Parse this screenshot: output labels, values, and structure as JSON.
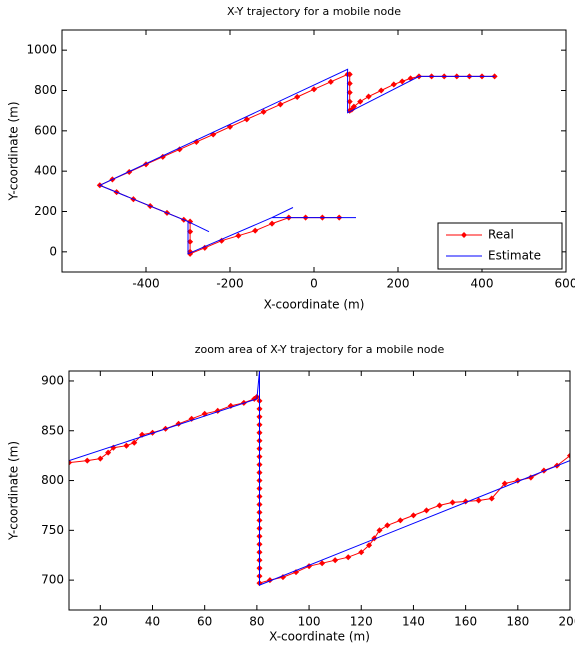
{
  "chart_data": [
    {
      "type": "line",
      "title": "X-Y trajectory for a mobile node",
      "x_label": "X-coordinate (m)",
      "y_label": "Y-coordinate (m)",
      "xlim": [
        -600,
        600
      ],
      "xticks": [
        -400,
        -200,
        0,
        200,
        400,
        600
      ],
      "ylim": [
        -100,
        1100
      ],
      "yticks": [
        0,
        200,
        400,
        600,
        800,
        1000
      ],
      "legend": "lower right",
      "series": [
        {
          "name": "Real",
          "color": "#ff0000",
          "marker": "diamond",
          "x": [
            430,
            400,
            370,
            340,
            310,
            280,
            250,
            230,
            210,
            190,
            160,
            130,
            110,
            95,
            90,
            85,
            85,
            85,
            85,
            85,
            80,
            40,
            0,
            -40,
            -80,
            -120,
            -160,
            -200,
            -240,
            -280,
            -320,
            -360,
            -400,
            -440,
            -480,
            -510,
            -470,
            -430,
            -390,
            -350,
            -310,
            -295,
            -295,
            -295,
            -295,
            -295,
            -260,
            -220,
            -180,
            -140,
            -100,
            -60,
            -20,
            20,
            60
          ],
          "values": [
            870,
            870,
            870,
            870,
            870,
            870,
            870,
            860,
            845,
            830,
            800,
            770,
            745,
            720,
            705,
            700,
            745,
            790,
            835,
            880,
            880,
            843,
            806,
            768,
            731,
            694,
            657,
            620,
            582,
            545,
            508,
            471,
            434,
            396,
            359,
            330,
            296,
            261,
            227,
            193,
            159,
            150,
            100,
            50,
            0,
            -10,
            20,
            55,
            80,
            105,
            140,
            170,
            170,
            170,
            170
          ]
        },
        {
          "name": "Estimate",
          "color": "#0000ff",
          "x": [
            430,
            250,
            90,
            80,
            80,
            -510,
            -300,
            -250,
            null,
            -300,
            -300,
            -100,
            -50,
            null,
            -100,
            100
          ],
          "values": [
            870,
            870,
            700,
            690,
            905,
            330,
            150,
            100,
            null,
            150,
            -10,
            170,
            220,
            null,
            170,
            170
          ]
        }
      ]
    },
    {
      "type": "line",
      "title": "zoom area of X-Y trajectory for a mobile node",
      "x_label": "X-coordinate (m)",
      "y_label": "Y-coordinate (m)",
      "xlim": [
        8,
        200
      ],
      "xticks": [
        20,
        40,
        60,
        80,
        100,
        120,
        140,
        160,
        180,
        200
      ],
      "ylim": [
        670,
        910
      ],
      "yticks": [
        700,
        750,
        800,
        850,
        900
      ],
      "series": [
        {
          "color": "#ff0000",
          "marker": "diamond",
          "x": [
            8,
            15,
            20,
            23,
            25,
            30,
            33,
            36,
            40,
            45,
            50,
            55,
            60,
            65,
            70,
            75,
            79,
            80,
            81,
            81,
            81,
            81,
            81,
            81,
            81,
            81,
            81,
            81,
            81,
            81,
            81,
            81,
            81,
            81,
            81,
            81,
            81,
            81,
            81,
            81,
            81,
            81,
            85,
            90,
            95,
            100,
            105,
            110,
            115,
            120,
            123,
            125,
            127,
            130,
            135,
            140,
            145,
            150,
            155,
            160,
            165,
            170,
            175,
            180,
            185,
            190,
            195,
            200
          ],
          "values": [
            818,
            820,
            822,
            828,
            833,
            835,
            838,
            846,
            848,
            852,
            857,
            862,
            867,
            870,
            875,
            878,
            882,
            884,
            880,
            872,
            864,
            856,
            848,
            840,
            832,
            824,
            816,
            808,
            800,
            792,
            784,
            776,
            768,
            760,
            752,
            744,
            736,
            728,
            720,
            712,
            704,
            697,
            700,
            703,
            708,
            714,
            717,
            720,
            723,
            728,
            735,
            742,
            750,
            755,
            760,
            765,
            770,
            775,
            778,
            779,
            780,
            782,
            797,
            800,
            803,
            810,
            815,
            825
          ]
        },
        {
          "color": "#0000ff",
          "x": [
            8,
            80,
            81,
            81,
            200
          ],
          "values": [
            820,
            882,
            910,
            695,
            820
          ]
        }
      ]
    }
  ]
}
